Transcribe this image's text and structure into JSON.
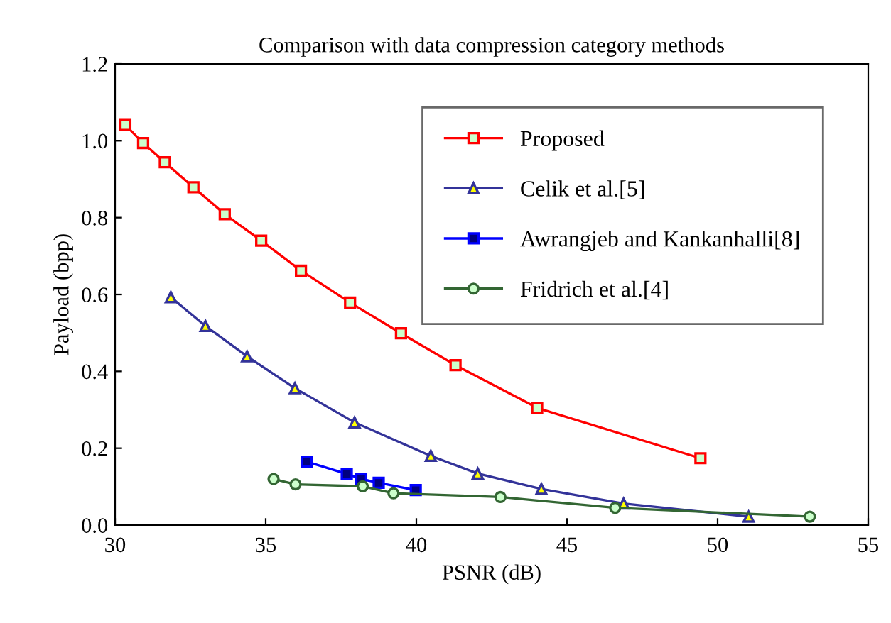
{
  "chart_data": {
    "type": "line",
    "title": "Comparison with data compression category methods",
    "xlabel": "PSNR (dB)",
    "ylabel": "Payload (bpp)",
    "xlim": [
      30,
      55
    ],
    "xticks": [
      30,
      35,
      40,
      45,
      50,
      55
    ],
    "ylim": [
      0,
      1.2
    ],
    "yticks": [
      {
        "value": 0,
        "label": "0.0"
      },
      {
        "value": 0.2,
        "label": "0.2"
      },
      {
        "value": 0.4,
        "label": "0.4"
      },
      {
        "value": 0.6,
        "label": "0.6"
      },
      {
        "value": 0.8,
        "label": "0.8"
      },
      {
        "value": 1.0,
        "label": "1.0"
      },
      {
        "value": 1.2,
        "label": "1.2"
      }
    ],
    "grid": false,
    "legend": "top right",
    "line_style": "solid",
    "series": [
      {
        "name": "Proposed",
        "color": "#ff0000",
        "marker": "square",
        "x": [
          30.34,
          30.93,
          31.65,
          32.6,
          33.64,
          34.85,
          36.17,
          37.8,
          39.49,
          41.3,
          44.01,
          49.43
        ],
        "values": [
          1.041,
          0.994,
          0.944,
          0.879,
          0.809,
          0.74,
          0.662,
          0.579,
          0.499,
          0.416,
          0.305,
          0.174
        ]
      },
      {
        "name": "Celik et al.[5]",
        "color": "#333399",
        "marker": "triangle",
        "x": [
          31.85,
          33.0,
          34.38,
          35.97,
          37.95,
          40.48,
          42.04,
          44.15,
          46.88,
          51.03
        ],
        "values": [
          0.593,
          0.518,
          0.439,
          0.356,
          0.267,
          0.18,
          0.134,
          0.094,
          0.056,
          0.022
        ]
      },
      {
        "name": "Awrangjeb and Kankanhalli[8]",
        "color": "#0000ff",
        "marker": "square",
        "x": [
          36.36,
          37.69,
          38.17,
          38.75,
          39.98
        ],
        "values": [
          0.165,
          0.133,
          0.12,
          0.11,
          0.091
        ]
      },
      {
        "name": "Fridrich et al.[4]",
        "color": "#336633",
        "marker": "circle",
        "x": [
          35.26,
          35.99,
          38.22,
          39.24,
          42.79,
          46.6,
          53.06
        ],
        "values": [
          0.12,
          0.106,
          0.101,
          0.083,
          0.073,
          0.045,
          0.022
        ]
      }
    ]
  }
}
